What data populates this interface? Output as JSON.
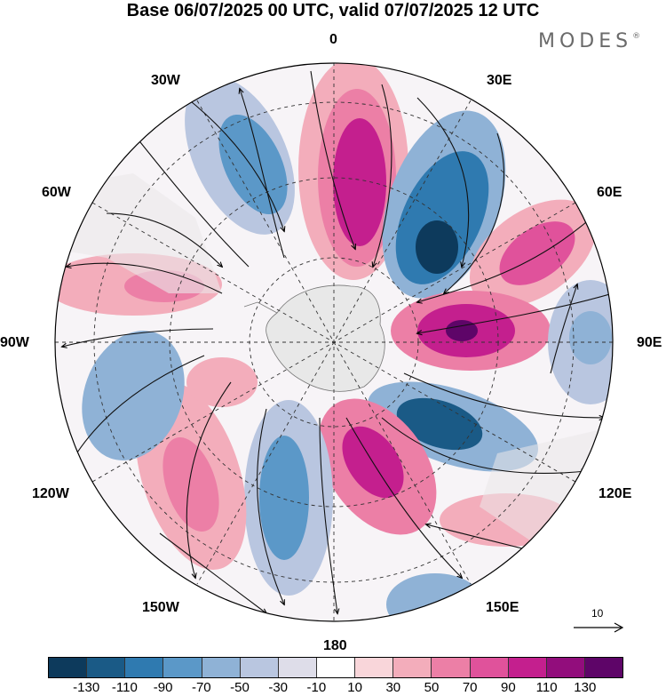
{
  "title": "Base 06/07/2025 00 UTC, valid 07/07/2025 12 UTC",
  "brand": {
    "text": "MODES",
    "mark": "®"
  },
  "map": {
    "projection": "south-polar-stereographic",
    "longitude_labels": {
      "top": "0",
      "top_right": "30E",
      "right_upper": "60E",
      "right": "90E",
      "right_lower": "120E",
      "bottom_right": "150E",
      "bottom": "180",
      "bottom_left": "150W",
      "left_lower": "120W",
      "left": "90W",
      "left_upper": "60W",
      "top_left": "30W"
    },
    "fields": [
      "shaded anomaly",
      "wind streamlines"
    ],
    "land_color": "#e6e6e6",
    "ocean_color": "#ffffff"
  },
  "reference_vector": {
    "value": "10"
  },
  "colorbar": {
    "colors": [
      "#0d3a5c",
      "#1a5a86",
      "#2f7ab0",
      "#5b98c8",
      "#8fb2d6",
      "#b9c6e0",
      "#dedde9",
      "#ffffff",
      "#f9d6da",
      "#f3adbb",
      "#ec7fa6",
      "#e0529b",
      "#c41f8e",
      "#920d7c",
      "#5e0568"
    ],
    "ticks": [
      "-130",
      "-110",
      "-90",
      "-70",
      "-50",
      "-30",
      "-10",
      "10",
      "30",
      "50",
      "70",
      "90",
      "110",
      "130"
    ]
  }
}
